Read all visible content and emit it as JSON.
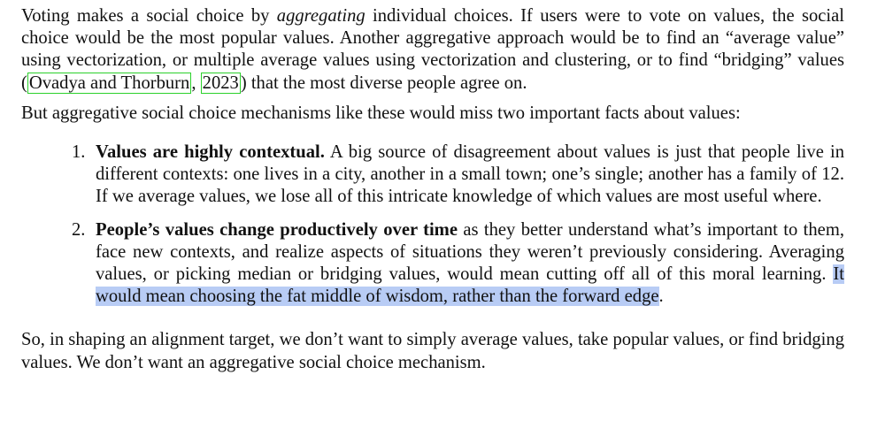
{
  "para1": {
    "pre": "Voting makes a social choice by ",
    "em": "aggregating",
    "mid": " individual choices. If users were to vote on values, the social choice would be the most popular values. Another aggregative approach would be to find an “average value” using vectorization, or multiple average values using vectorization and clustering, or to find “bridging” values (",
    "cite_authors": "Ovadya and Thorburn",
    "cite_sep": ", ",
    "cite_year": "2023",
    "post": ") that the most diverse people agree on."
  },
  "para2": "But aggregative social choice mechanisms like these would miss two important facts about values:",
  "list": [
    {
      "number": "1.",
      "bold": "Values are highly contextual.",
      "text": " A big source of disagreement about values is just that people live in different contexts: one lives in a city, another in a small town; one’s single; another has a family of 12. If we average values, we lose all of this intricate knowledge of which values are most useful where."
    },
    {
      "number": "2.",
      "bold": "People’s values change productively over time",
      "text": " as they better understand what’s important to them, face new contexts, and realize aspects of situations they weren’t previously consid­ering. Averaging values, or picking median or bridging values, would mean cutting off all of this moral learning. ",
      "highlight": "It would mean choosing the fat middle of wisdom, rather than the forward edge",
      "end": "."
    }
  ],
  "para3": "So, in shaping an alignment target, we don’t want to simply average values, take popular values, or find bridging values. We don’t want an aggregative social choice mechanism.",
  "colors": {
    "text": "#111111",
    "citation_box": "#2bd12b",
    "highlight": "#b8ccf5"
  }
}
